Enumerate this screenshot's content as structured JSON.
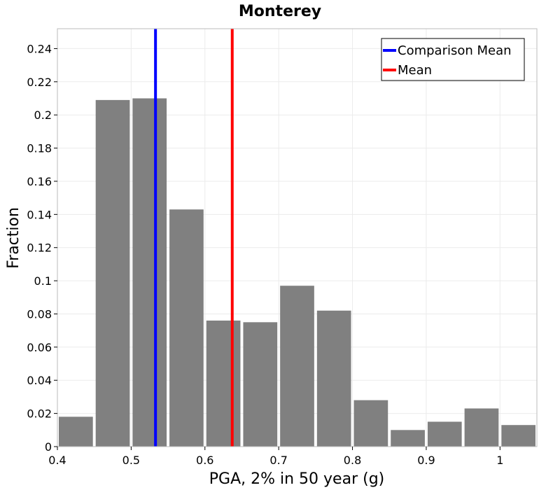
{
  "chart_data": {
    "type": "bar",
    "title": "Monterey",
    "xlabel": "PGA, 2% in 50 year (g)",
    "ylabel": "Fraction",
    "xlim": [
      0.4,
      1.05
    ],
    "ylim": [
      0,
      0.252
    ],
    "x_ticks": [
      "0.4",
      "0.5",
      "0.6",
      "0.7",
      "0.8",
      "0.9",
      "1"
    ],
    "y_ticks": [
      "0",
      "0.02",
      "0.04",
      "0.06",
      "0.08",
      "0.1",
      "0.12",
      "0.14",
      "0.16",
      "0.18",
      "0.2",
      "0.22",
      "0.24"
    ],
    "bin_width": 0.05,
    "bar_color": "#808080",
    "bins": [
      {
        "x": 0.425,
        "value": 0.018
      },
      {
        "x": 0.475,
        "value": 0.209
      },
      {
        "x": 0.525,
        "value": 0.21
      },
      {
        "x": 0.575,
        "value": 0.143
      },
      {
        "x": 0.625,
        "value": 0.076
      },
      {
        "x": 0.675,
        "value": 0.075
      },
      {
        "x": 0.725,
        "value": 0.097
      },
      {
        "x": 0.775,
        "value": 0.082
      },
      {
        "x": 0.825,
        "value": 0.028
      },
      {
        "x": 0.875,
        "value": 0.01
      },
      {
        "x": 0.925,
        "value": 0.015
      },
      {
        "x": 0.975,
        "value": 0.023
      },
      {
        "x": 1.025,
        "value": 0.013
      }
    ],
    "reference_lines": [
      {
        "name": "Comparison Mean",
        "x": 0.533,
        "color": "#0000ff"
      },
      {
        "name": "Mean",
        "x": 0.637,
        "color": "#ff0000"
      }
    ],
    "legend_position": "top-right",
    "grid": true
  }
}
